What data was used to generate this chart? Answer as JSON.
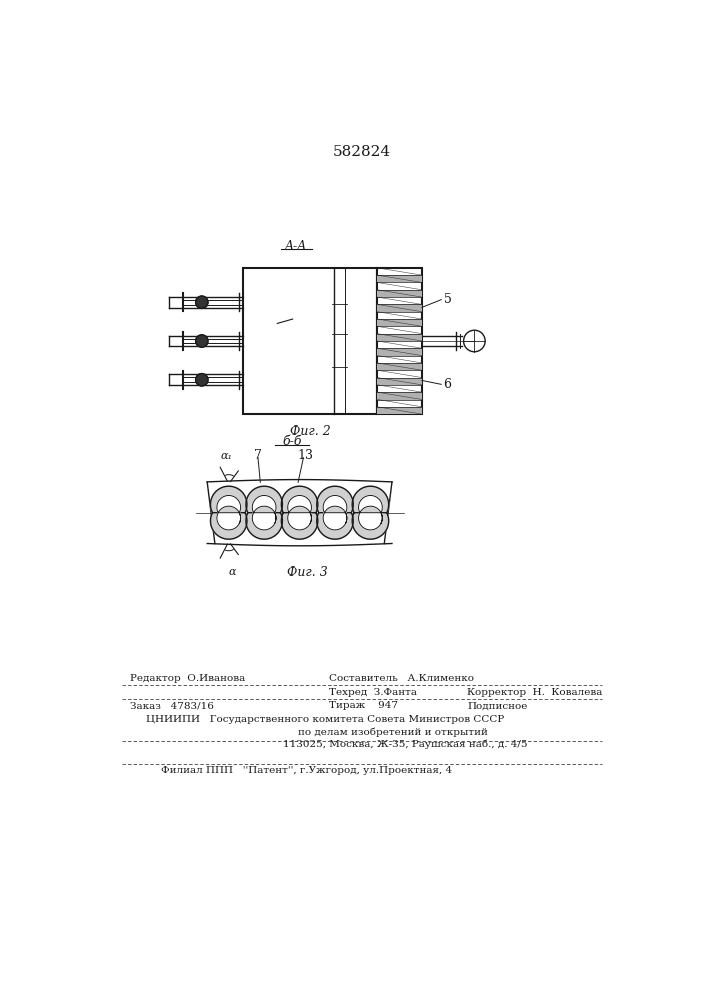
{
  "patent_number": "582824",
  "bg_color": "#ffffff",
  "line_color": "#1a1a1a",
  "fig2_label": "Фиг. 2",
  "fig3_label": "Фиг. 3",
  "section_aa": "A-A",
  "section_bb": "б-б",
  "label5": "5",
  "label6": "6",
  "label7": "7",
  "label13": "13",
  "label_alpha1": "α₁",
  "label_alpha": "α",
  "footer_line1": "Редактор  О.Иванова",
  "footer_col2_line1": "Составитель   А.Клименко",
  "footer_col2_line2": "Техред  З.Фанта",
  "footer_col3": "Корректор  Н.  Ковалева",
  "footer_zakaz": "Заказ   4783/16",
  "footer_tirazh": "Тираж    947",
  "footer_podpisnoe": "Подписное",
  "footer_cniip": "ЦНИИПИ   Государственного комитета Совета Министров СССР",
  "footer_dela": "по делам изобретений и открытий",
  "footer_addr": "113025, Москва, Ж-35, Раушская наб., д. 4/5",
  "footer_filial": "Филиал ППП   ''Патент'', г.Ужгород, ул.Проектная, 4"
}
